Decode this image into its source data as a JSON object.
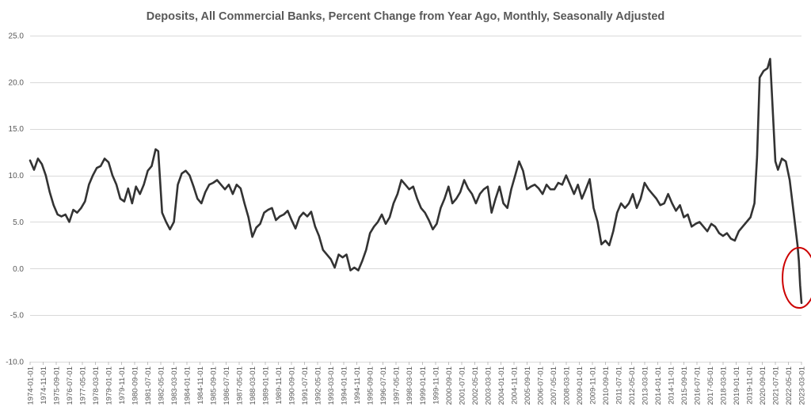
{
  "chart_data": {
    "type": "line",
    "title": "Deposits, All Commercial Banks, Percent Change from Year Ago, Monthly, Seasonally Adjusted",
    "xlabel": "",
    "ylabel": "",
    "ylim": [
      -10,
      25
    ],
    "yticks": [
      "25.0",
      "20.0",
      "15.0",
      "10.0",
      "5.0",
      "0.0",
      "-5.0",
      "-10.0"
    ],
    "xlim": [
      "1974-01",
      "2023-03"
    ],
    "grid": {
      "horizontal": true,
      "vertical": false
    },
    "legend": "none",
    "xtick_labels": [
      "1974-01-01",
      "1974-11-01",
      "1975-09-01",
      "1976-07-01",
      "1977-05-01",
      "1978-03-01",
      "1979-01-01",
      "1979-11-01",
      "1980-09-01",
      "1981-07-01",
      "1982-05-01",
      "1983-03-01",
      "1984-01-01",
      "1984-11-01",
      "1985-09-01",
      "1986-07-01",
      "1987-05-01",
      "1988-03-01",
      "1989-01-01",
      "1989-11-01",
      "1990-09-01",
      "1991-07-01",
      "1992-05-01",
      "1993-03-01",
      "1994-01-01",
      "1994-11-01",
      "1995-09-01",
      "1996-07-01",
      "1997-05-01",
      "1998-03-01",
      "1999-01-01",
      "1999-11-01",
      "2000-09-01",
      "2001-07-01",
      "2002-05-01",
      "2003-03-01",
      "2004-01-01",
      "2004-11-01",
      "2005-09-01",
      "2006-07-01",
      "2007-05-01",
      "2008-03-01",
      "2009-01-01",
      "2009-11-01",
      "2010-09-01",
      "2011-07-01",
      "2012-05-01",
      "2013-03-01",
      "2014-01-01",
      "2014-11-01",
      "2015-09-01",
      "2016-07-01",
      "2017-05-01",
      "2018-03-01",
      "2019-01-01",
      "2019-11-01",
      "2020-09-01",
      "2021-07-01",
      "2022-05-01",
      "2023-03-01"
    ],
    "series": [
      {
        "color": "#333333",
        "points": [
          [
            "1974-01",
            11.6
          ],
          [
            "1974-04",
            10.6
          ],
          [
            "1974-07",
            11.8
          ],
          [
            "1974-10",
            11.2
          ],
          [
            "1975-01",
            10.0
          ],
          [
            "1975-04",
            8.2
          ],
          [
            "1975-07",
            6.8
          ],
          [
            "1975-10",
            5.8
          ],
          [
            "1976-01",
            5.6
          ],
          [
            "1976-04",
            5.8
          ],
          [
            "1976-07",
            5.0
          ],
          [
            "1976-10",
            6.3
          ],
          [
            "1977-01",
            6.0
          ],
          [
            "1977-04",
            6.5
          ],
          [
            "1977-07",
            7.2
          ],
          [
            "1977-10",
            9.0
          ],
          [
            "1978-01",
            10.0
          ],
          [
            "1978-04",
            10.8
          ],
          [
            "1978-07",
            11.0
          ],
          [
            "1978-10",
            11.8
          ],
          [
            "1979-01",
            11.4
          ],
          [
            "1979-04",
            10.0
          ],
          [
            "1979-07",
            9.0
          ],
          [
            "1979-10",
            7.5
          ],
          [
            "1980-01",
            7.2
          ],
          [
            "1980-04",
            8.6
          ],
          [
            "1980-07",
            7.0
          ],
          [
            "1980-10",
            8.8
          ],
          [
            "1981-01",
            8.0
          ],
          [
            "1981-04",
            9.0
          ],
          [
            "1981-07",
            10.5
          ],
          [
            "1981-10",
            11.0
          ],
          [
            "1982-01",
            12.8
          ],
          [
            "1982-03",
            12.6
          ],
          [
            "1982-06",
            6.0
          ],
          [
            "1982-09",
            5.0
          ],
          [
            "1982-12",
            4.2
          ],
          [
            "1983-03",
            5.0
          ],
          [
            "1983-06",
            9.0
          ],
          [
            "1983-09",
            10.2
          ],
          [
            "1983-12",
            10.5
          ],
          [
            "1984-03",
            10.0
          ],
          [
            "1984-06",
            8.8
          ],
          [
            "1984-09",
            7.5
          ],
          [
            "1984-12",
            7.0
          ],
          [
            "1985-03",
            8.2
          ],
          [
            "1985-06",
            9.0
          ],
          [
            "1985-09",
            9.2
          ],
          [
            "1985-12",
            9.5
          ],
          [
            "1986-03",
            9.0
          ],
          [
            "1986-06",
            8.5
          ],
          [
            "1986-09",
            9.0
          ],
          [
            "1986-12",
            8.0
          ],
          [
            "1987-03",
            9.0
          ],
          [
            "1987-06",
            8.6
          ],
          [
            "1987-09",
            7.0
          ],
          [
            "1987-12",
            5.5
          ],
          [
            "1988-03",
            3.4
          ],
          [
            "1988-06",
            4.4
          ],
          [
            "1988-09",
            4.8
          ],
          [
            "1988-12",
            6.0
          ],
          [
            "1989-03",
            6.3
          ],
          [
            "1989-06",
            6.5
          ],
          [
            "1989-09",
            5.2
          ],
          [
            "1989-12",
            5.6
          ],
          [
            "1990-03",
            5.8
          ],
          [
            "1990-06",
            6.2
          ],
          [
            "1990-09",
            5.2
          ],
          [
            "1990-12",
            4.3
          ],
          [
            "1991-03",
            5.5
          ],
          [
            "1991-06",
            6.0
          ],
          [
            "1991-09",
            5.6
          ],
          [
            "1991-12",
            6.1
          ],
          [
            "1992-03",
            4.5
          ],
          [
            "1992-06",
            3.5
          ],
          [
            "1992-09",
            2.0
          ],
          [
            "1992-12",
            1.5
          ],
          [
            "1993-03",
            1.0
          ],
          [
            "1993-06",
            0.1
          ],
          [
            "1993-09",
            1.5
          ],
          [
            "1993-12",
            1.2
          ],
          [
            "1994-03",
            1.5
          ],
          [
            "1994-06",
            -0.2
          ],
          [
            "1994-09",
            0.1
          ],
          [
            "1994-12",
            -0.2
          ],
          [
            "1995-03",
            0.8
          ],
          [
            "1995-06",
            2.0
          ],
          [
            "1995-09",
            3.8
          ],
          [
            "1995-12",
            4.5
          ],
          [
            "1996-03",
            5.0
          ],
          [
            "1996-06",
            5.8
          ],
          [
            "1996-09",
            4.8
          ],
          [
            "1996-12",
            5.5
          ],
          [
            "1997-03",
            7.0
          ],
          [
            "1997-06",
            8.0
          ],
          [
            "1997-09",
            9.5
          ],
          [
            "1997-12",
            9.0
          ],
          [
            "1998-03",
            8.5
          ],
          [
            "1998-06",
            8.8
          ],
          [
            "1998-09",
            7.5
          ],
          [
            "1998-12",
            6.5
          ],
          [
            "1999-03",
            6.0
          ],
          [
            "1999-06",
            5.2
          ],
          [
            "1999-09",
            4.2
          ],
          [
            "1999-12",
            4.8
          ],
          [
            "2000-03",
            6.5
          ],
          [
            "2000-06",
            7.5
          ],
          [
            "2000-09",
            8.8
          ],
          [
            "2000-12",
            7.0
          ],
          [
            "2001-03",
            7.5
          ],
          [
            "2001-06",
            8.2
          ],
          [
            "2001-09",
            9.5
          ],
          [
            "2001-12",
            8.6
          ],
          [
            "2002-03",
            8.0
          ],
          [
            "2002-06",
            7.0
          ],
          [
            "2002-09",
            8.0
          ],
          [
            "2002-12",
            8.5
          ],
          [
            "2003-03",
            8.8
          ],
          [
            "2003-06",
            6.0
          ],
          [
            "2003-09",
            7.5
          ],
          [
            "2003-12",
            8.8
          ],
          [
            "2004-03",
            7.0
          ],
          [
            "2004-06",
            6.5
          ],
          [
            "2004-09",
            8.5
          ],
          [
            "2004-12",
            10.0
          ],
          [
            "2005-03",
            11.5
          ],
          [
            "2005-06",
            10.5
          ],
          [
            "2005-09",
            8.5
          ],
          [
            "2005-12",
            8.8
          ],
          [
            "2006-03",
            9.0
          ],
          [
            "2006-06",
            8.6
          ],
          [
            "2006-09",
            8.0
          ],
          [
            "2006-12",
            9.0
          ],
          [
            "2007-03",
            8.5
          ],
          [
            "2007-06",
            8.5
          ],
          [
            "2007-09",
            9.2
          ],
          [
            "2007-12",
            9.0
          ],
          [
            "2008-03",
            10.0
          ],
          [
            "2008-06",
            9.0
          ],
          [
            "2008-09",
            8.0
          ],
          [
            "2008-12",
            9.0
          ],
          [
            "2009-03",
            7.5
          ],
          [
            "2009-06",
            8.5
          ],
          [
            "2009-09",
            9.6
          ],
          [
            "2009-12",
            6.5
          ],
          [
            "2010-03",
            5.0
          ],
          [
            "2010-06",
            2.6
          ],
          [
            "2010-09",
            3.0
          ],
          [
            "2010-12",
            2.5
          ],
          [
            "2011-03",
            4.0
          ],
          [
            "2011-06",
            6.0
          ],
          [
            "2011-09",
            7.0
          ],
          [
            "2011-12",
            6.5
          ],
          [
            "2012-03",
            7.0
          ],
          [
            "2012-06",
            8.0
          ],
          [
            "2012-09",
            6.5
          ],
          [
            "2012-12",
            7.5
          ],
          [
            "2013-03",
            9.2
          ],
          [
            "2013-06",
            8.5
          ],
          [
            "2013-09",
            8.0
          ],
          [
            "2013-12",
            7.5
          ],
          [
            "2014-03",
            6.8
          ],
          [
            "2014-06",
            7.0
          ],
          [
            "2014-09",
            8.0
          ],
          [
            "2014-12",
            7.0
          ],
          [
            "2015-03",
            6.2
          ],
          [
            "2015-06",
            6.8
          ],
          [
            "2015-09",
            5.5
          ],
          [
            "2015-12",
            5.8
          ],
          [
            "2016-03",
            4.5
          ],
          [
            "2016-06",
            4.8
          ],
          [
            "2016-09",
            5.0
          ],
          [
            "2016-12",
            4.5
          ],
          [
            "2017-03",
            4.0
          ],
          [
            "2017-06",
            4.8
          ],
          [
            "2017-09",
            4.5
          ],
          [
            "2017-12",
            3.8
          ],
          [
            "2018-03",
            3.5
          ],
          [
            "2018-06",
            3.8
          ],
          [
            "2018-09",
            3.2
          ],
          [
            "2018-12",
            3.0
          ],
          [
            "2019-03",
            4.0
          ],
          [
            "2019-06",
            4.5
          ],
          [
            "2019-09",
            5.0
          ],
          [
            "2019-12",
            5.5
          ],
          [
            "2020-03",
            7.0
          ],
          [
            "2020-05",
            12.0
          ],
          [
            "2020-07",
            20.5
          ],
          [
            "2020-10",
            21.2
          ],
          [
            "2021-01",
            21.5
          ],
          [
            "2021-03",
            22.5
          ],
          [
            "2021-05",
            17.0
          ],
          [
            "2021-07",
            11.5
          ],
          [
            "2021-09",
            10.6
          ],
          [
            "2021-12",
            11.8
          ],
          [
            "2022-03",
            11.5
          ],
          [
            "2022-06",
            9.5
          ],
          [
            "2022-09",
            6.0
          ],
          [
            "2022-12",
            2.5
          ],
          [
            "2023-01",
            0.8
          ],
          [
            "2023-02",
            -1.8
          ],
          [
            "2023-03",
            -3.7
          ]
        ]
      }
    ],
    "annotations": [
      {
        "type": "ellipse",
        "color": "#cc0000",
        "around": {
          "x": "2022-12",
          "y": -1.0
        }
      }
    ]
  }
}
